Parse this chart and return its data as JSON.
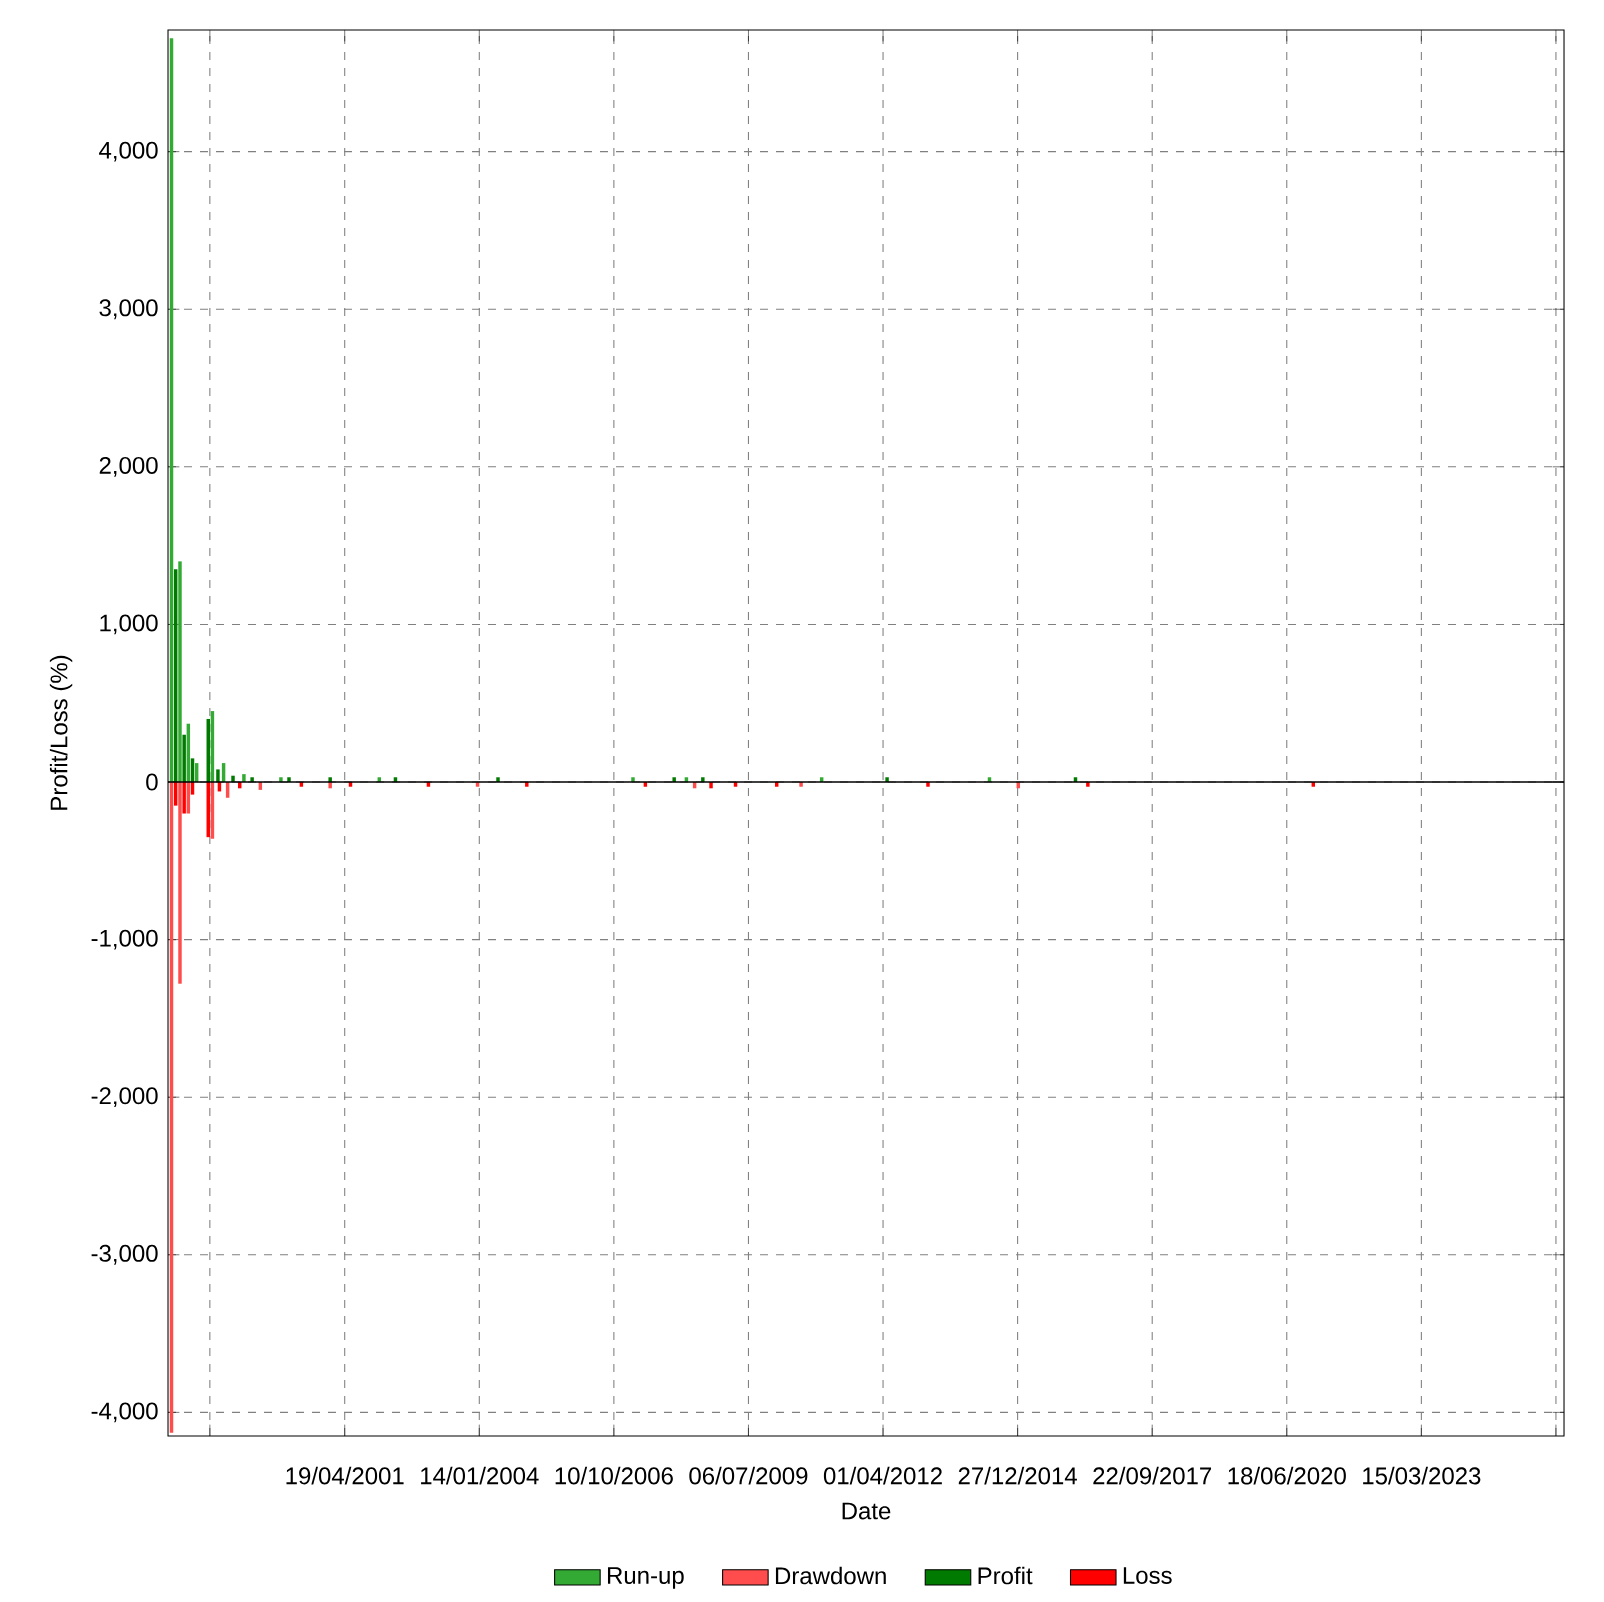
{
  "chart_data": {
    "type": "bar",
    "xlabel": "Date",
    "ylabel": "Profit/Loss (%)",
    "xlim": [
      "1997-09-14",
      "2026-02-07"
    ],
    "ylim": [
      -4150,
      4772
    ],
    "xticks": [
      {
        "value": "1998-07-22",
        "label": null
      },
      {
        "value": "2001-04-19",
        "label": "19/04/2001"
      },
      {
        "value": "2004-01-14",
        "label": "14/01/2004"
      },
      {
        "value": "2006-10-10",
        "label": "10/10/2006"
      },
      {
        "value": "2009-07-06",
        "label": "06/07/2009"
      },
      {
        "value": "2012-04-01",
        "label": "01/04/2012"
      },
      {
        "value": "2014-12-27",
        "label": "27/12/2014"
      },
      {
        "value": "2017-09-22",
        "label": "22/09/2017"
      },
      {
        "value": "2020-06-18",
        "label": "18/06/2020"
      },
      {
        "value": "2023-03-15",
        "label": "15/03/2023"
      },
      {
        "value": "2025-12-09",
        "label": null
      }
    ],
    "yticks": [
      {
        "value": -4000,
        "label": "-4,000"
      },
      {
        "value": -3000,
        "label": "-3,000"
      },
      {
        "value": -2000,
        "label": "-2,000"
      },
      {
        "value": -1000,
        "label": "-1,000"
      },
      0,
      {
        "value": 1000,
        "label": "1,000"
      },
      {
        "value": 2000,
        "label": "2,000"
      },
      {
        "value": 3000,
        "label": "3,000"
      },
      {
        "value": 4000,
        "label": "4,000"
      }
    ],
    "grid": true,
    "legend": "bottom",
    "ref_lines": [
      {
        "axis": "y",
        "value": 0,
        "color": "#000000"
      }
    ],
    "series": [
      {
        "name": "Run-up",
        "color": "#33aa33",
        "x": [
          "1997-10-10",
          "1997-12-12",
          "1998-02-12",
          "1998-04-15",
          "1998-08-10",
          "1998-11-01",
          "1999-04-01",
          "2000-01-01",
          "2002-01-01",
          "2007-03-01",
          "2008-04-01",
          "2011-01-01",
          "2014-06-01"
        ],
        "values": [
          4720,
          1400,
          370,
          120,
          450,
          120,
          50,
          30,
          30,
          30,
          30,
          30,
          30
        ]
      },
      {
        "name": "Drawdown",
        "color": "#ff4d4d",
        "x": [
          "1997-10-10",
          "1997-12-12",
          "1998-02-12",
          "1998-08-10",
          "1998-12-01",
          "1999-08-01",
          "2001-01-01",
          "2004-01-01",
          "2008-06-01",
          "2010-08-01",
          "2015-01-01"
        ],
        "values": [
          -4130,
          -1280,
          -200,
          -360,
          -100,
          -50,
          -40,
          -30,
          -40,
          -30,
          -40
        ]
      },
      {
        "name": "Profit",
        "color": "#007a00",
        "x": [
          "1997-11-10",
          "1998-01-12",
          "1998-03-15",
          "1998-07-10",
          "1998-09-20",
          "1999-01-10",
          "1999-06-01",
          "2000-03-01",
          "2001-01-01",
          "2002-05-01",
          "2004-06-01",
          "2008-01-01",
          "2008-08-01",
          "2012-05-01",
          "2016-03-01"
        ],
        "values": [
          1350,
          300,
          150,
          400,
          80,
          40,
          30,
          30,
          30,
          30,
          30,
          30,
          30,
          30,
          30
        ]
      },
      {
        "name": "Loss",
        "color": "#ff0000",
        "x": [
          "1997-11-10",
          "1998-01-12",
          "1998-03-15",
          "1998-07-10",
          "1998-10-01",
          "1999-03-01",
          "2000-06-01",
          "2001-06-01",
          "2003-01-01",
          "2005-01-01",
          "2007-06-01",
          "2008-10-01",
          "2009-04-01",
          "2010-02-01",
          "2013-03-01",
          "2016-06-01",
          "2021-01-01"
        ],
        "values": [
          -150,
          -200,
          -80,
          -350,
          -60,
          -40,
          -30,
          -30,
          -30,
          -30,
          -30,
          -40,
          -30,
          -30,
          -30,
          -30,
          -30
        ]
      }
    ]
  }
}
